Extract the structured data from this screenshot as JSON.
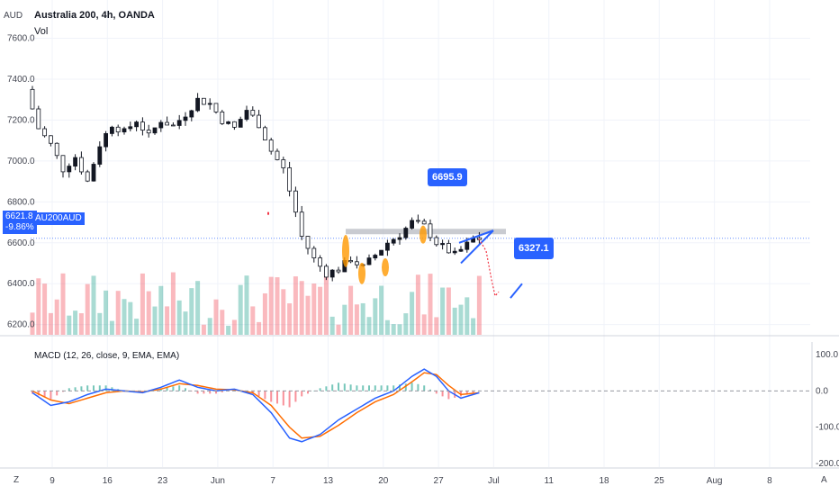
{
  "header": {
    "title": "Australia 200, 4h, OANDA",
    "volume_label": "Vol",
    "currency": "AUD",
    "macd_label": "MACD (12, 26, close, 9, EMA, EMA)"
  },
  "price_tag": {
    "value": "6621.8",
    "change": "-9.86%",
    "symbol": "AU200AUD"
  },
  "annotations": {
    "high_callout": "6695.9",
    "target_callout": "6327.1"
  },
  "footer": {
    "left_button": "Z",
    "right_button": "A"
  },
  "colors": {
    "up": "#089981",
    "down": "#f23645",
    "accent": "#2962ff",
    "macd_line": "#2962ff",
    "signal_line": "#ff6d00",
    "highlight": "#ff9800",
    "level_zone": "#b2b5be"
  },
  "chart_data": {
    "type": "candlestick",
    "price_axis": {
      "ticks": [
        "7600.0",
        "7400.0",
        "7200.0",
        "7000.0",
        "6800.0",
        "6600.0",
        "6400.0",
        "6200.0"
      ],
      "range": [
        6150,
        7620
      ]
    },
    "macd_axis": {
      "ticks": [
        "100.0",
        "0.0",
        "-100.0",
        "-200.0"
      ],
      "range": [
        -210,
        110
      ]
    },
    "time_axis": {
      "labels": [
        "9",
        "16",
        "23",
        "Jun",
        "7",
        "13",
        "20",
        "27",
        "Jul",
        "11",
        "18",
        "25",
        "Aug",
        "8"
      ]
    },
    "price_path": [
      [
        0,
        7350
      ],
      [
        2,
        7160
      ],
      [
        4,
        7080
      ],
      [
        6,
        6960
      ],
      [
        8,
        7020
      ],
      [
        10,
        6900
      ],
      [
        12,
        7080
      ],
      [
        14,
        7180
      ],
      [
        16,
        7140
      ],
      [
        18,
        7200
      ],
      [
        20,
        7120
      ],
      [
        22,
        7200
      ],
      [
        24,
        7170
      ],
      [
        26,
        7230
      ],
      [
        28,
        7300
      ],
      [
        30,
        7280
      ],
      [
        32,
        7200
      ],
      [
        34,
        7160
      ],
      [
        36,
        7250
      ],
      [
        38,
        7180
      ],
      [
        40,
        7050
      ],
      [
        42,
        6960
      ],
      [
        44,
        6750
      ],
      [
        45,
        6630
      ],
      [
        47,
        6520
      ],
      [
        49,
        6450
      ],
      [
        51,
        6470
      ],
      [
        53,
        6520
      ],
      [
        55,
        6480
      ],
      [
        57,
        6540
      ],
      [
        59,
        6600
      ],
      [
        61,
        6640
      ],
      [
        63,
        6700
      ],
      [
        65,
        6680
      ],
      [
        67,
        6600
      ],
      [
        68,
        6580
      ],
      [
        70,
        6540
      ],
      [
        72,
        6590
      ],
      [
        73,
        6620
      ]
    ],
    "macd_path": [
      [
        0,
        -5
      ],
      [
        3,
        -40
      ],
      [
        6,
        -30
      ],
      [
        9,
        -10
      ],
      [
        12,
        5
      ],
      [
        15,
        0
      ],
      [
        18,
        -5
      ],
      [
        21,
        10
      ],
      [
        24,
        30
      ],
      [
        27,
        10
      ],
      [
        30,
        0
      ],
      [
        33,
        5
      ],
      [
        36,
        -10
      ],
      [
        39,
        -60
      ],
      [
        42,
        -130
      ],
      [
        44,
        -140
      ],
      [
        47,
        -120
      ],
      [
        50,
        -80
      ],
      [
        53,
        -50
      ],
      [
        56,
        -20
      ],
      [
        59,
        0
      ],
      [
        62,
        40
      ],
      [
        64,
        60
      ],
      [
        66,
        40
      ],
      [
        68,
        0
      ],
      [
        70,
        -20
      ],
      [
        73,
        -5
      ]
    ],
    "signal_path": [
      [
        0,
        0
      ],
      [
        3,
        -25
      ],
      [
        6,
        -35
      ],
      [
        9,
        -20
      ],
      [
        12,
        -5
      ],
      [
        15,
        0
      ],
      [
        18,
        -3
      ],
      [
        21,
        5
      ],
      [
        24,
        20
      ],
      [
        27,
        15
      ],
      [
        30,
        5
      ],
      [
        33,
        3
      ],
      [
        36,
        -5
      ],
      [
        39,
        -40
      ],
      [
        42,
        -100
      ],
      [
        44,
        -130
      ],
      [
        47,
        -125
      ],
      [
        50,
        -95
      ],
      [
        53,
        -60
      ],
      [
        56,
        -30
      ],
      [
        59,
        -10
      ],
      [
        62,
        25
      ],
      [
        64,
        50
      ],
      [
        66,
        45
      ],
      [
        68,
        15
      ],
      [
        70,
        -10
      ],
      [
        73,
        -5
      ]
    ]
  }
}
